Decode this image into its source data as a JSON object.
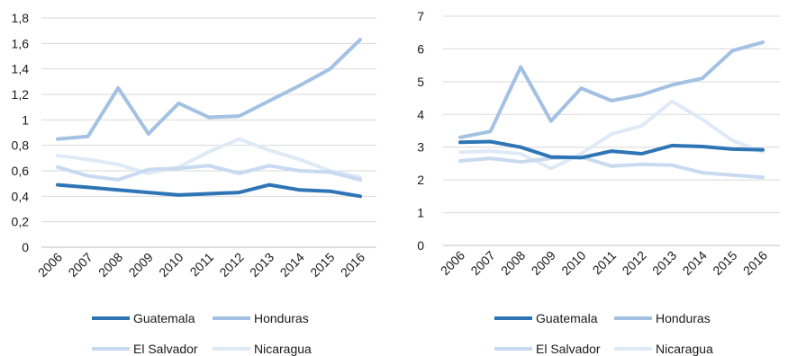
{
  "chart_data": [
    {
      "type": "line",
      "title": "",
      "xlabel": "",
      "ylabel": "",
      "categories": [
        "2006",
        "2007",
        "2008",
        "2009",
        "2010",
        "2011",
        "2012",
        "2013",
        "2014",
        "2015",
        "2016"
      ],
      "ylim": [
        0,
        1.8
      ],
      "yticks": [
        "0",
        "0,2",
        "0,4",
        "0,6",
        "0,8",
        "1",
        "1,2",
        "1,4",
        "1,6",
        "1,8"
      ],
      "grid": true,
      "legend_position": "bottom",
      "series": [
        {
          "name": "Guatemala",
          "color": "#2e75b6",
          "values": [
            0.49,
            0.47,
            0.45,
            0.43,
            0.41,
            0.42,
            0.43,
            0.49,
            0.45,
            0.44,
            0.4
          ]
        },
        {
          "name": "Honduras",
          "color": "#a3c1e3",
          "values": [
            0.85,
            0.87,
            1.25,
            0.89,
            1.13,
            1.02,
            1.03,
            1.15,
            1.27,
            1.4,
            1.63
          ]
        },
        {
          "name": "El Salvador",
          "color": "#c9daf0",
          "values": [
            0.63,
            0.56,
            0.53,
            0.61,
            0.62,
            0.64,
            0.58,
            0.64,
            0.6,
            0.59,
            0.53
          ]
        },
        {
          "name": "Nicaragua",
          "color": "#deeaf6",
          "values": [
            0.72,
            0.69,
            0.65,
            0.58,
            0.63,
            0.75,
            0.85,
            0.76,
            0.69,
            0.6,
            0.55
          ]
        }
      ]
    },
    {
      "type": "line",
      "title": "",
      "xlabel": "",
      "ylabel": "",
      "categories": [
        "2006",
        "2007",
        "2008",
        "2009",
        "2010",
        "2011",
        "2012",
        "2013",
        "2014",
        "2015",
        "2016"
      ],
      "ylim": [
        0,
        7
      ],
      "yticks": [
        "0",
        "1",
        "2",
        "3",
        "4",
        "5",
        "6",
        "7"
      ],
      "grid": true,
      "legend_position": "bottom",
      "series": [
        {
          "name": "Guatemala",
          "color": "#2e75b6",
          "values": [
            3.15,
            3.17,
            3.0,
            2.7,
            2.68,
            2.88,
            2.8,
            3.05,
            3.02,
            2.94,
            2.92
          ]
        },
        {
          "name": "Honduras",
          "color": "#a3c1e3",
          "values": [
            3.3,
            3.48,
            5.45,
            3.8,
            4.8,
            4.42,
            4.6,
            4.9,
            5.1,
            5.95,
            6.2
          ]
        },
        {
          "name": "El Salvador",
          "color": "#c9daf0",
          "values": [
            2.58,
            2.66,
            2.55,
            2.66,
            2.7,
            2.42,
            2.48,
            2.45,
            2.22,
            2.15,
            2.08
          ]
        },
        {
          "name": "Nicaragua",
          "color": "#deeaf6",
          "values": [
            2.85,
            2.88,
            2.8,
            2.35,
            2.8,
            3.4,
            3.65,
            4.4,
            3.85,
            3.2,
            2.85
          ]
        }
      ]
    }
  ]
}
